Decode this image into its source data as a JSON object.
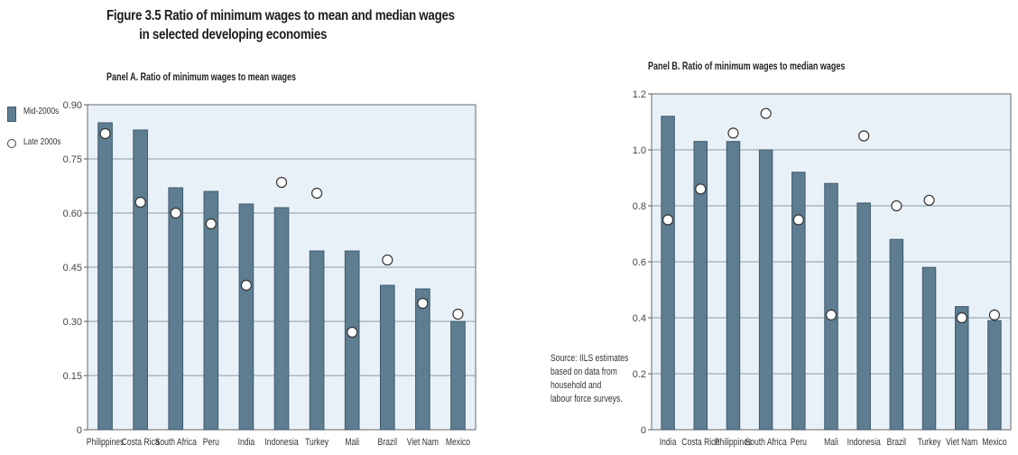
{
  "figure_title_line1": "Figure 3.5  Ratio of minimum wages to mean and median wages",
  "figure_title_line2": "in selected developing economies",
  "legend": {
    "mid": "Mid-2000s",
    "late": "Late 2000s"
  },
  "source_lines": [
    "Source: IILS estimates",
    "based on data from",
    "household and",
    "labour force surveys."
  ],
  "colors": {
    "bar": "#5e7d91",
    "bar_edge": "#3e5a6c",
    "plot_bg": "#e9f1f8",
    "grid": "#8a9aa6"
  },
  "chart_data": [
    {
      "type": "bar",
      "title": "Panel A. Ratio of minimum wages to mean wages",
      "categories": [
        "Philippines",
        "Costa Rica",
        "South Africa",
        "Peru",
        "India",
        "Indonesia",
        "Turkey",
        "Mali",
        "Brazil",
        "Viet Nam",
        "Mexico"
      ],
      "series": [
        {
          "name": "Mid-2000s",
          "type": "bar",
          "values": [
            0.85,
            0.83,
            0.67,
            0.66,
            0.625,
            0.615,
            0.495,
            0.495,
            0.4,
            0.39,
            0.3
          ]
        },
        {
          "name": "Late 2000s",
          "type": "marker",
          "values": [
            0.82,
            0.63,
            0.6,
            0.57,
            0.4,
            0.685,
            0.655,
            0.27,
            0.47,
            0.35,
            0.32
          ]
        }
      ],
      "yticks": [
        "0",
        "0.15",
        "0.30",
        "0.45",
        "0.60",
        "0.75",
        "0.90"
      ],
      "ylim": [
        0,
        0.9
      ],
      "grid": true,
      "legend_position": "left"
    },
    {
      "type": "bar",
      "title": "Panel B. Ratio of minimum wages to median wages",
      "categories": [
        "India",
        "Costa Rica",
        "Philippines",
        "South Africa",
        "Peru",
        "Mali",
        "Indonesia",
        "Brazil",
        "Turkey",
        "Viet Nam",
        "Mexico"
      ],
      "series": [
        {
          "name": "Mid-2000s",
          "type": "bar",
          "values": [
            1.12,
            1.03,
            1.03,
            1.0,
            0.92,
            0.88,
            0.81,
            0.68,
            0.58,
            0.44,
            0.39
          ]
        },
        {
          "name": "Late 2000s",
          "type": "marker",
          "values": [
            0.75,
            0.86,
            1.06,
            1.13,
            0.75,
            0.41,
            1.05,
            0.8,
            0.82,
            0.4,
            0.41
          ]
        }
      ],
      "yticks": [
        "0",
        "0.2",
        "0.4",
        "0.6",
        "0.8",
        "1.0",
        "1.2"
      ],
      "ylim": [
        0,
        1.2
      ],
      "grid": true
    }
  ]
}
